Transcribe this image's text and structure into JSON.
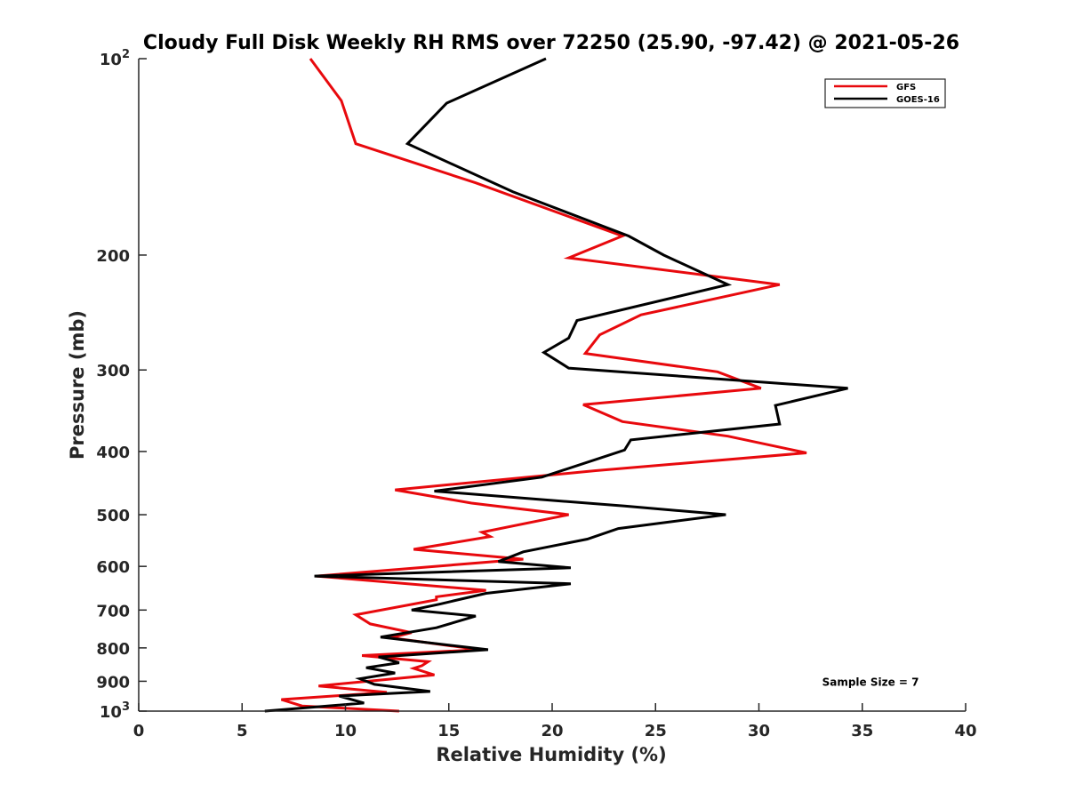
{
  "chart_data": {
    "type": "line",
    "title": "Cloudy Full Disk Weekly RH RMS over 72250 (25.90, -97.42) @ 2021-05-26",
    "xlabel": "Relative Humidity (%)",
    "ylabel": "Pressure (mb)",
    "xlim": [
      0,
      40
    ],
    "ylim": [
      100,
      1000
    ],
    "yscale": "log",
    "y_reversed": true,
    "grid": false,
    "legend_position": "top-right",
    "x_ticks": [
      "0",
      "5",
      "10",
      "15",
      "20",
      "25",
      "30",
      "35",
      "40"
    ],
    "y_ticks": [
      {
        "value": 100,
        "base": "10",
        "exp": "2"
      },
      {
        "value": 200,
        "label": "200"
      },
      {
        "value": 300,
        "label": "300"
      },
      {
        "value": 400,
        "label": "400"
      },
      {
        "value": 500,
        "label": "500"
      },
      {
        "value": 600,
        "label": "600"
      },
      {
        "value": 700,
        "label": "700"
      },
      {
        "value": 800,
        "label": "800"
      },
      {
        "value": 900,
        "label": "900"
      },
      {
        "value": 1000,
        "base": "10",
        "exp": "3"
      }
    ],
    "series": [
      {
        "name": "GFS",
        "color": "#e8090d",
        "points": [
          [
            8.3,
            100
          ],
          [
            9.8,
            116
          ],
          [
            10.5,
            135
          ],
          [
            16.3,
            155
          ],
          [
            23.4,
            187
          ],
          [
            20.8,
            202
          ],
          [
            31.0,
            222
          ],
          [
            24.3,
            247
          ],
          [
            22.3,
            265
          ],
          [
            21.6,
            283
          ],
          [
            28.0,
            302
          ],
          [
            30.1,
            320
          ],
          [
            21.5,
            339
          ],
          [
            23.4,
            360
          ],
          [
            28.5,
            379
          ],
          [
            32.3,
            402
          ],
          [
            22.1,
            428
          ],
          [
            12.4,
            458
          ],
          [
            16.1,
            480
          ],
          [
            20.8,
            500
          ],
          [
            16.6,
            532
          ],
          [
            17.0,
            540
          ],
          [
            13.3,
            565
          ],
          [
            18.6,
            585
          ],
          [
            8.6,
            621
          ],
          [
            16.8,
            653
          ],
          [
            14.4,
            668
          ],
          [
            14.4,
            675
          ],
          [
            10.5,
            712
          ],
          [
            11.2,
            735
          ],
          [
            13.2,
            758
          ],
          [
            12.2,
            772
          ],
          [
            16.5,
            805
          ],
          [
            10.8,
            822
          ],
          [
            14.0,
            840
          ],
          [
            13.7,
            852
          ],
          [
            13.3,
            860
          ],
          [
            14.3,
            880
          ],
          [
            8.7,
            915
          ],
          [
            12.0,
            936
          ],
          [
            6.9,
            960
          ],
          [
            7.9,
            982
          ],
          [
            12.6,
            1000
          ]
        ]
      },
      {
        "name": "GOES-16",
        "color": "#000000",
        "points": [
          [
            19.7,
            100
          ],
          [
            14.9,
            117
          ],
          [
            13.0,
            135
          ],
          [
            18.1,
            160
          ],
          [
            23.7,
            187
          ],
          [
            25.4,
            200
          ],
          [
            28.5,
            222
          ],
          [
            21.2,
            252
          ],
          [
            20.8,
            268
          ],
          [
            19.6,
            282
          ],
          [
            20.8,
            298
          ],
          [
            34.3,
            320
          ],
          [
            30.8,
            340
          ],
          [
            31.0,
            363
          ],
          [
            23.8,
            384
          ],
          [
            23.5,
            398
          ],
          [
            19.5,
            438
          ],
          [
            14.3,
            460
          ],
          [
            23.5,
            485
          ],
          [
            28.4,
            500
          ],
          [
            23.2,
            525
          ],
          [
            21.7,
            545
          ],
          [
            18.6,
            570
          ],
          [
            17.4,
            590
          ],
          [
            20.9,
            603
          ],
          [
            8.5,
            621
          ],
          [
            20.9,
            638
          ],
          [
            16.8,
            660
          ],
          [
            14.6,
            685
          ],
          [
            13.2,
            700
          ],
          [
            16.3,
            715
          ],
          [
            14.4,
            745
          ],
          [
            11.7,
            770
          ],
          [
            16.9,
            805
          ],
          [
            11.6,
            826
          ],
          [
            12.6,
            843
          ],
          [
            11.0,
            858
          ],
          [
            12.4,
            874
          ],
          [
            10.7,
            892
          ],
          [
            11.4,
            910
          ],
          [
            14.1,
            933
          ],
          [
            9.7,
            948
          ],
          [
            10.9,
            972
          ],
          [
            6.1,
            1000
          ]
        ]
      }
    ],
    "annotations": [
      {
        "text": "Sample Size = 7",
        "x": 35.4,
        "y": 900
      }
    ]
  }
}
